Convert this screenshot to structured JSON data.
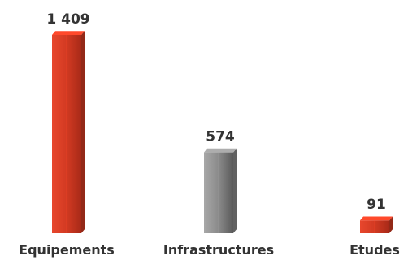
{
  "chart_data": {
    "type": "bar",
    "categories": [
      "Equipements",
      "Infrastructures",
      "Etudes"
    ],
    "values": [
      1409,
      574,
      91
    ],
    "value_labels": [
      "1 409",
      "574",
      "91"
    ],
    "bar_colors": [
      "#d23a22",
      "#8a8a8a",
      "#d23a22"
    ],
    "title": "",
    "xlabel": "",
    "ylabel": "",
    "ylim": [
      0,
      1409
    ],
    "grid": false,
    "legend": "none"
  }
}
